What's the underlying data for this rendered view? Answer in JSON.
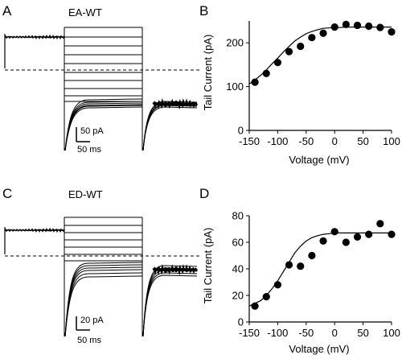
{
  "panels": {
    "A": {
      "letter": "A",
      "title": "EA-WT",
      "scale_y": "50 pA",
      "scale_x": "50 ms"
    },
    "B": {
      "letter": "B"
    },
    "C": {
      "letter": "C",
      "title": "ED-WT",
      "scale_y": "20 pA",
      "scale_x": "50 ms"
    },
    "D": {
      "letter": "D"
    }
  },
  "chart_data": [
    {
      "panel": "B",
      "type": "scatter",
      "xlabel": "Voltage (mV)",
      "ylabel": "Tail Current (pA)",
      "xlim": [
        -150,
        100
      ],
      "ylim": [
        0,
        250
      ],
      "xticks": [
        -150,
        -100,
        -50,
        0,
        50,
        100
      ],
      "yticks": [
        0,
        100,
        200
      ],
      "x": [
        -140,
        -120,
        -100,
        -80,
        -60,
        -40,
        -20,
        0,
        20,
        40,
        60,
        80,
        100
      ],
      "y": [
        110,
        130,
        155,
        180,
        192,
        212,
        222,
        236,
        242,
        240,
        238,
        235,
        225
      ],
      "fit": {
        "x": [
          -150,
          -140,
          -130,
          -120,
          -110,
          -100,
          -90,
          -80,
          -70,
          -60,
          -50,
          -40,
          -30,
          -20,
          -10,
          0,
          10,
          20,
          30,
          40,
          50,
          60,
          70,
          80,
          90,
          100
        ],
        "y": [
          106,
          115,
          126,
          138,
          152,
          165,
          179,
          192,
          204,
          213,
          221,
          226,
          230,
          233,
          234,
          235,
          235,
          236,
          236,
          236,
          236,
          236,
          236,
          236,
          236,
          236
        ]
      }
    },
    {
      "panel": "D",
      "type": "scatter",
      "xlabel": "Voltage (mV)",
      "ylabel": "Tail Current (pA)",
      "xlim": [
        -150,
        100
      ],
      "ylim": [
        0,
        80
      ],
      "xticks": [
        -150,
        -100,
        -50,
        0,
        50,
        100
      ],
      "yticks": [
        0,
        20,
        40,
        60,
        80
      ],
      "x": [
        -140,
        -120,
        -100,
        -80,
        -60,
        -40,
        -20,
        0,
        20,
        40,
        60,
        80,
        100
      ],
      "y": [
        12,
        19,
        28,
        43,
        42,
        50,
        61,
        68,
        60,
        64,
        66,
        74,
        66
      ],
      "fit": {
        "x": [
          -150,
          -140,
          -130,
          -120,
          -110,
          -100,
          -90,
          -80,
          -70,
          -60,
          -50,
          -40,
          -30,
          -20,
          -10,
          0,
          10,
          20,
          30,
          40,
          50,
          60,
          70,
          80,
          90,
          100
        ],
        "y": [
          12,
          14,
          16,
          20,
          25,
          31,
          38,
          45,
          52,
          57,
          61,
          63.5,
          65,
          66,
          66.5,
          67,
          67,
          67,
          67,
          67,
          67,
          67,
          67,
          67,
          67,
          67
        ]
      }
    }
  ]
}
